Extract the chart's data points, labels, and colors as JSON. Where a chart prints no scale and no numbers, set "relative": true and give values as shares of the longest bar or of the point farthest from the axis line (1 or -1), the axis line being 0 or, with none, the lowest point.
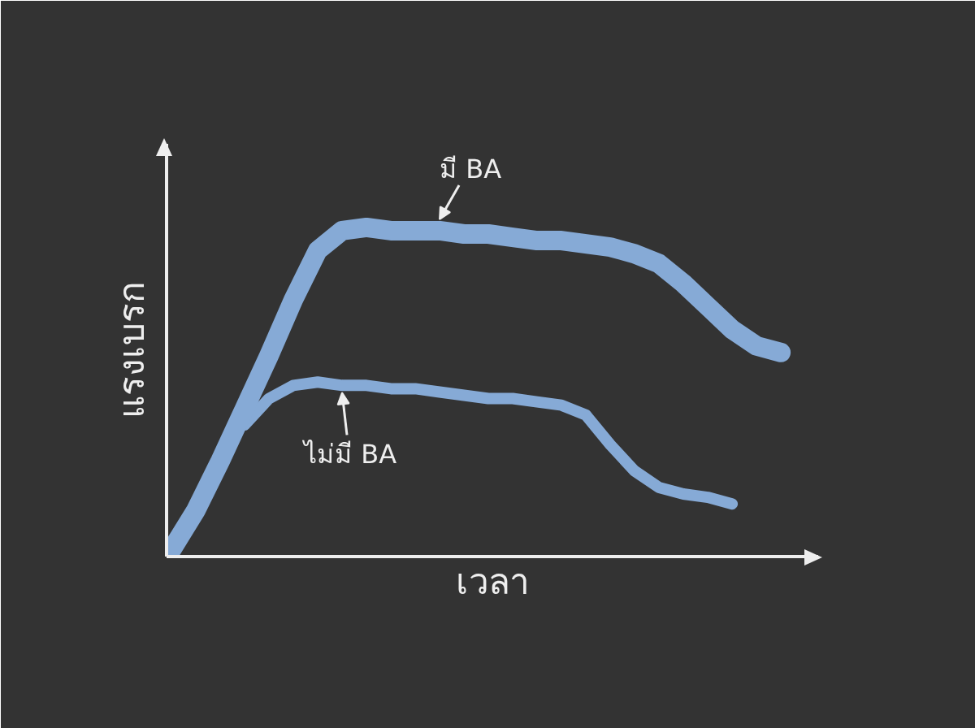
{
  "chart_data": {
    "type": "line",
    "relative": true,
    "xlabel": "เวลา",
    "ylabel": "แรงเบรก",
    "categories": [
      null,
      null,
      null,
      null,
      null,
      null,
      null,
      null,
      null,
      null,
      null,
      null,
      null,
      null,
      null,
      null,
      null,
      null,
      null,
      null,
      null,
      null,
      null,
      null,
      null,
      null
    ],
    "series": [
      {
        "name": "มี BA",
        "color": "#86aad6",
        "values": [
          0.02,
          0.14,
          0.29,
          0.45,
          0.61,
          0.78,
          0.93,
          0.99,
          1.0,
          0.99,
          0.99,
          0.99,
          0.98,
          0.98,
          0.97,
          0.96,
          0.96,
          0.95,
          0.94,
          0.92,
          0.89,
          0.83,
          0.76,
          0.69,
          0.64,
          0.62
        ]
      },
      {
        "name": "ไม่มี BA",
        "color": "#86aad6",
        "values": [
          null,
          null,
          null,
          0.4,
          0.48,
          0.52,
          0.53,
          0.52,
          0.52,
          0.51,
          0.51,
          0.5,
          0.49,
          0.48,
          0.48,
          0.47,
          0.46,
          0.43,
          0.34,
          0.26,
          0.21,
          0.19,
          0.18,
          0.16,
          null,
          null
        ]
      }
    ],
    "legend": false,
    "marker": "none",
    "line_style": "solid"
  }
}
